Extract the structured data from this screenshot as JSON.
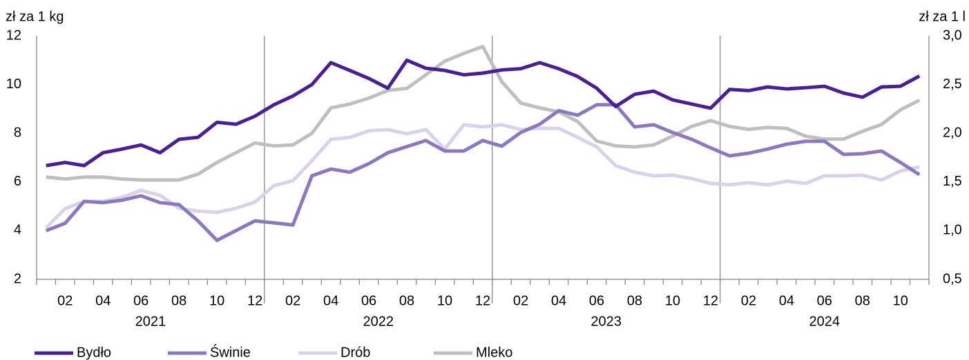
{
  "chart_data": {
    "type": "line",
    "y_label": "zł za 1 kg",
    "y2_label": "zł za 1 l",
    "categories": [
      null,
      "02",
      null,
      "04",
      null,
      "06",
      null,
      "08",
      null,
      "10",
      null,
      "12",
      null,
      "02",
      null,
      "04",
      null,
      "06",
      null,
      "08",
      null,
      "10",
      null,
      "12",
      null,
      "02",
      null,
      "04",
      null,
      "06",
      null,
      "08",
      null,
      "10",
      null,
      "12",
      null,
      "02",
      null,
      "04",
      null,
      "06",
      null,
      "08",
      null,
      "10",
      null
    ],
    "years": [
      "2021",
      "2022",
      "2023",
      "2024"
    ],
    "ylim": [
      2,
      12
    ],
    "yticks": [
      2,
      4,
      6,
      8,
      10,
      12
    ],
    "y2lim": [
      0.5,
      3
    ],
    "y2ticks": [
      {
        "value": 0.5,
        "label": "0,5"
      },
      {
        "value": 1,
        "label": "1,0"
      },
      {
        "value": 1.5,
        "label": "1,5"
      },
      {
        "value": 2,
        "label": "2,0"
      },
      {
        "value": 2.5,
        "label": "2,5"
      },
      {
        "value": 3,
        "label": "3,0"
      }
    ],
    "legend": "bottom",
    "series": [
      {
        "name": "Bydło",
        "color": "#4b1f94",
        "values": [
          6.67,
          6.8,
          6.67,
          7.2,
          7.35,
          7.52,
          7.2,
          7.75,
          7.83,
          8.45,
          8.37,
          8.7,
          9.17,
          9.53,
          10.0,
          10.9,
          10.58,
          10.25,
          9.85,
          11.0,
          10.67,
          10.58,
          10.4,
          10.47,
          10.6,
          10.65,
          10.9,
          10.65,
          10.33,
          9.85,
          9.1,
          9.6,
          9.73,
          9.37,
          9.2,
          9.03,
          9.8,
          9.75,
          9.9,
          9.82,
          9.87,
          9.93,
          9.65,
          9.48,
          9.9,
          9.93,
          10.35
        ]
      },
      {
        "name": "Świnie",
        "color": "#8d78c0",
        "values": [
          4.0,
          4.3,
          5.2,
          5.15,
          5.25,
          5.43,
          5.15,
          5.07,
          4.4,
          3.6,
          4.0,
          4.4,
          4.32,
          4.23,
          6.25,
          6.53,
          6.4,
          6.75,
          7.2,
          7.45,
          7.7,
          7.27,
          7.27,
          7.7,
          7.47,
          8.03,
          8.37,
          8.93,
          8.74,
          9.17,
          9.17,
          8.26,
          8.35,
          8.03,
          7.75,
          7.4,
          7.07,
          7.18,
          7.35,
          7.55,
          7.67,
          7.67,
          7.13,
          7.16,
          7.27,
          6.8,
          6.3
        ]
      },
      {
        "name": "Drób",
        "color": "#d9d2ea",
        "values": [
          4.12,
          4.9,
          5.2,
          5.2,
          5.37,
          5.65,
          5.45,
          4.92,
          4.8,
          4.75,
          4.92,
          5.17,
          5.85,
          6.05,
          6.87,
          7.75,
          7.83,
          8.1,
          8.15,
          7.98,
          8.15,
          7.35,
          8.35,
          8.26,
          8.35,
          8.15,
          8.2,
          8.2,
          7.83,
          7.44,
          6.67,
          6.4,
          6.25,
          6.28,
          6.14,
          5.94,
          5.88,
          5.97,
          5.88,
          6.03,
          5.94,
          6.25,
          6.25,
          6.28,
          6.08,
          6.45,
          6.62
        ]
      },
      {
        "name": "Mleko",
        "color": "#bfbfbf",
        "axis": "y2",
        "values": [
          1.55,
          1.53,
          1.55,
          1.55,
          1.53,
          1.52,
          1.52,
          1.52,
          1.58,
          1.7,
          1.8,
          1.9,
          1.87,
          1.88,
          2.0,
          2.26,
          2.3,
          2.36,
          2.44,
          2.46,
          2.6,
          2.74,
          2.82,
          2.89,
          2.53,
          2.31,
          2.26,
          2.22,
          2.12,
          1.92,
          1.87,
          1.86,
          1.88,
          1.97,
          2.07,
          2.13,
          2.07,
          2.04,
          2.06,
          2.05,
          1.97,
          1.94,
          1.94,
          2.02,
          2.09,
          2.24,
          2.34
        ]
      }
    ]
  }
}
